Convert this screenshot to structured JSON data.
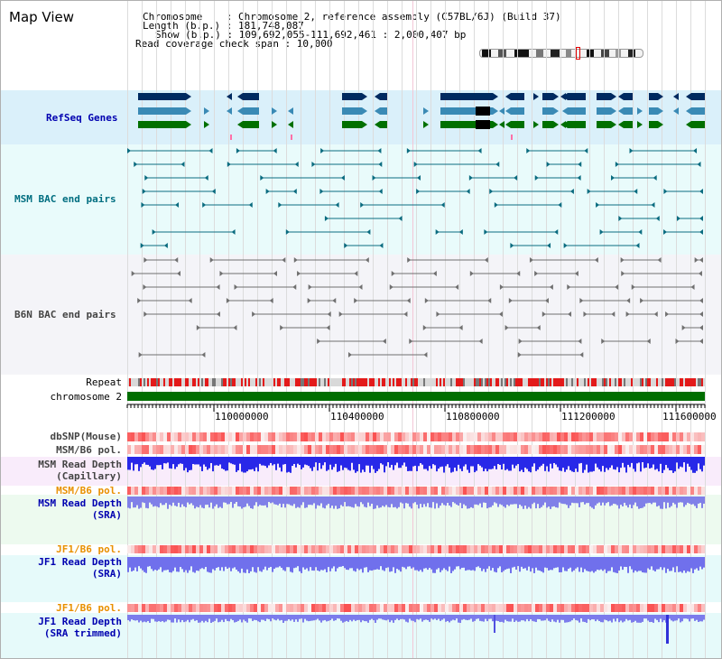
{
  "header": {
    "title": "Map View",
    "chromosome_line": "Chromosome    : Chromosome 2, reference assembly (C57BL/6J) (Build 37)",
    "length_line": "Length (b.p.) : 181,748,087",
    "show_line": "Show (b.p.) : 109,692,055-111,692,461 : 2,000,407 bp",
    "coverage_line": "Read coverage check span : 10,000"
  },
  "tracks": {
    "refseq": "RefSeq Genes",
    "msm_bac": "MSM BAC end pairs",
    "b6n_bac": "B6N BAC end pairs",
    "repeat": "Repeat",
    "chromosome": "chromosome 2",
    "dbsnp": "dbSNP(Mouse)",
    "msm_b6_pol_1": "MSM/B6 pol.",
    "msm_depth_cap_1": "MSM Read Depth",
    "msm_depth_cap_2": "(Capillary)",
    "msm_b6_pol_2": "MSM/B6 pol.",
    "msm_depth_sra_1": "MSM Read Depth",
    "msm_depth_sra_2": "(SRA)",
    "jf1_b6_pol_1": "JF1/B6 pol.",
    "jf1_depth_sra_1": "JF1 Read Depth",
    "jf1_depth_sra_2": "(SRA)",
    "jf1_b6_pol_2": "JF1/B6 pol.",
    "jf1_depth_trim_1": "JF1 Read Depth",
    "jf1_depth_trim_2": "(SRA trimmed)"
  },
  "axis": {
    "ticks": [
      "110000000",
      "110400000",
      "110800000",
      "111200000",
      "111600000"
    ]
  },
  "colors": {
    "refseq_band": "#daf0fa",
    "bac_band": "#e9fbfb",
    "b6n_band": "#f4f4f8",
    "gene_navy": "#002a60",
    "gene_steel": "#3a8ab5",
    "gene_green": "#007000",
    "msm_bac": "#0b6c80",
    "b6n_bac": "#707070",
    "repeat_red": "#e31a1a",
    "chrom_green": "#006e00",
    "depth_blue": "#2828e8",
    "label_blue": "#0000b0",
    "label_teal": "#006e80",
    "label_orange": "#e89000",
    "label_gray": "#444444"
  }
}
